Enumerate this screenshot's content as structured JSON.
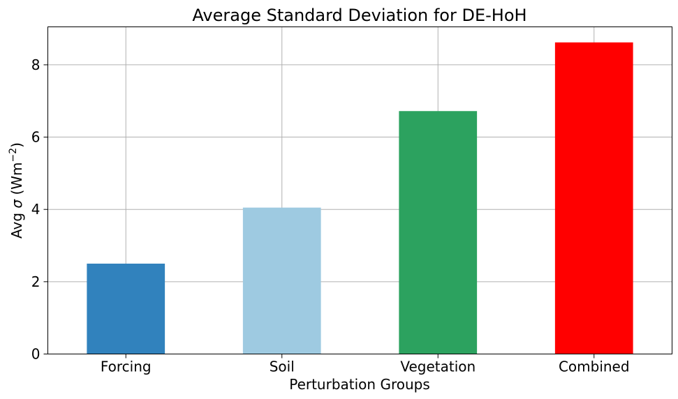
{
  "chart_data": {
    "type": "bar",
    "title": "Average Standard Deviation for DE-HoH",
    "xlabel": "Perturbation Groups",
    "ylabel_parts": {
      "prefix": "Avg ",
      "sigma": "σ",
      "open": " (Wm",
      "sup": "−2",
      "close": ")"
    },
    "categories": [
      "Forcing",
      "Soil",
      "Vegetation",
      "Combined"
    ],
    "values": [
      2.5,
      4.05,
      6.72,
      8.62
    ],
    "colors": [
      "#3182bd",
      "#9ecae1",
      "#2ca25f",
      "#ff0000"
    ],
    "ylim": [
      0,
      9.05
    ],
    "yticks": [
      0,
      2,
      4,
      6,
      8
    ],
    "grid": true
  }
}
